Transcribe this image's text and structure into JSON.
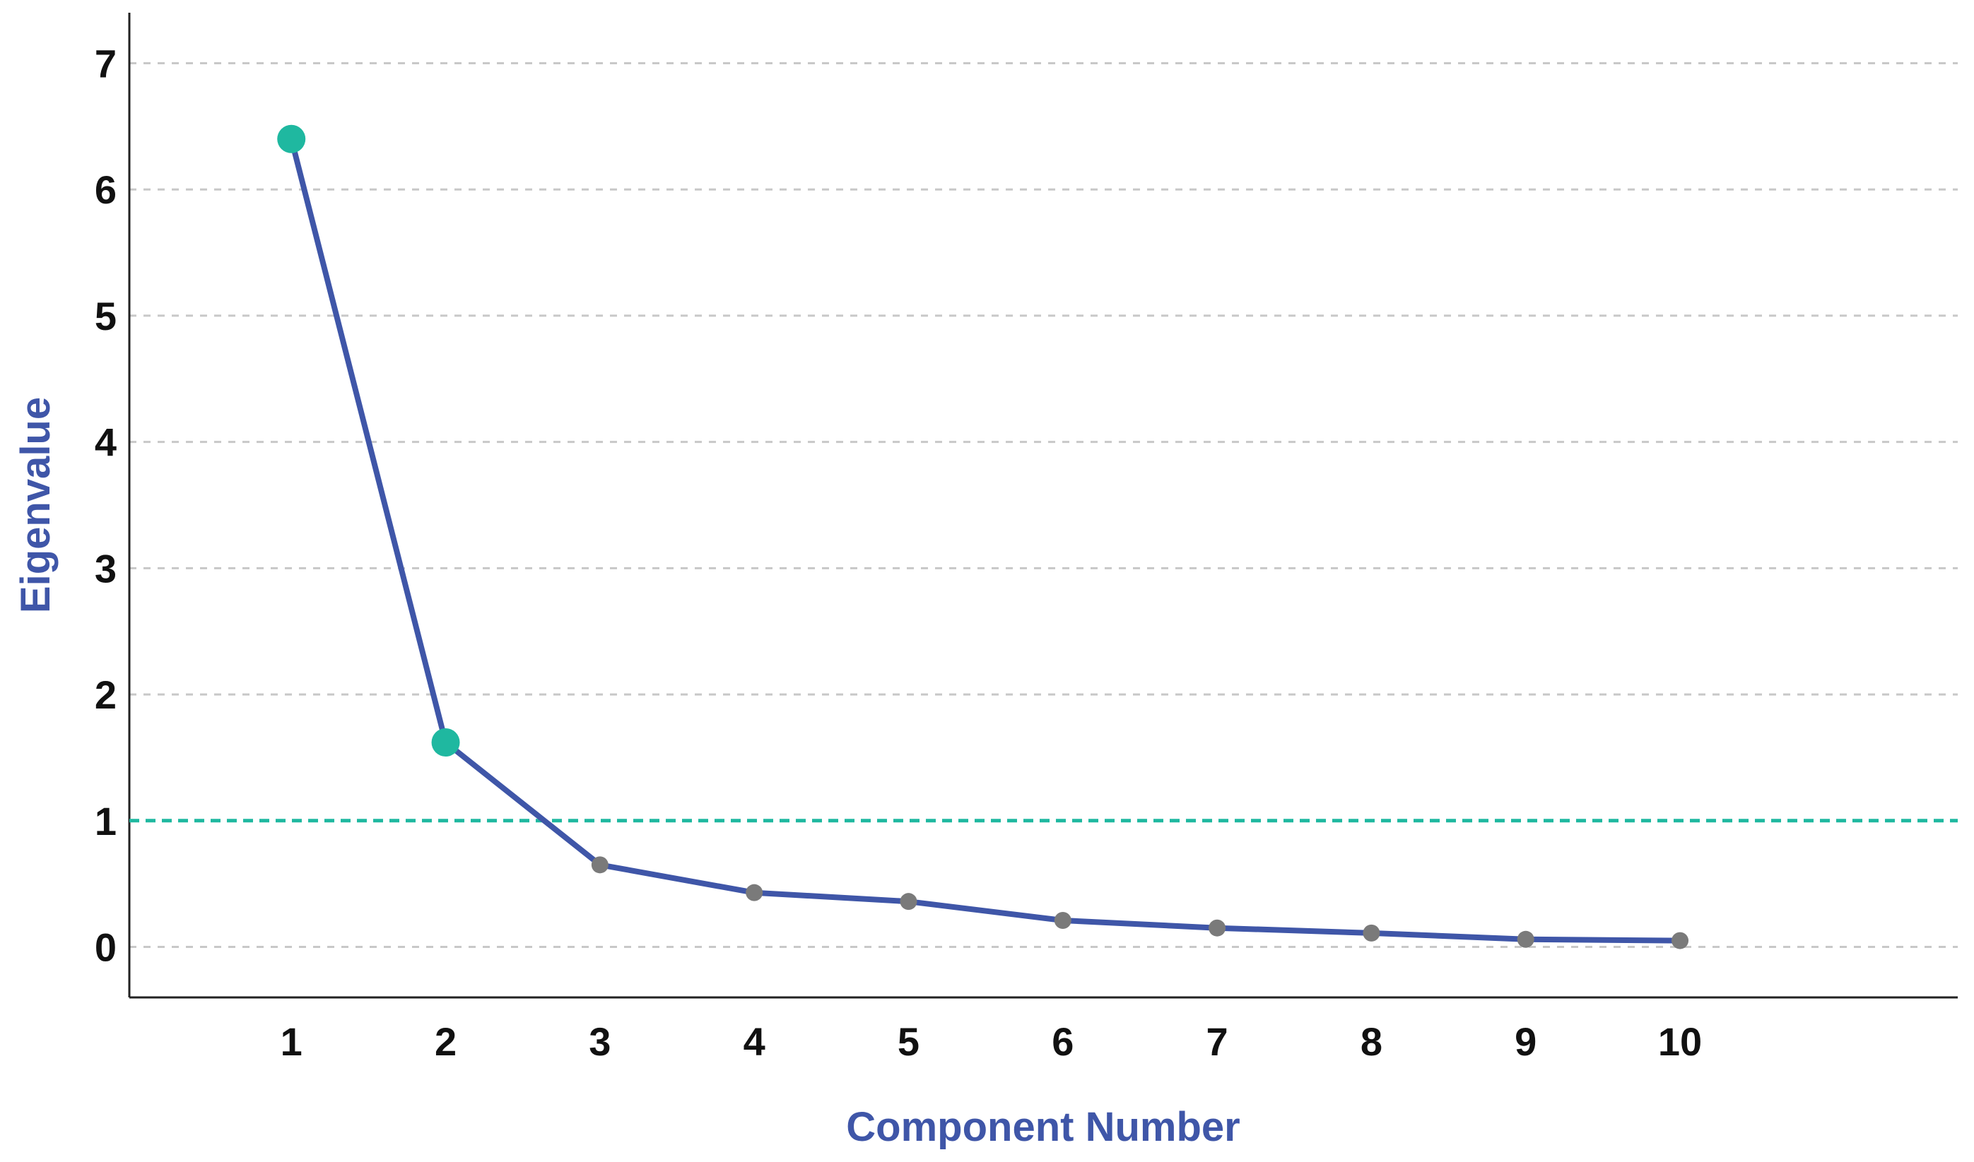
{
  "chart_data": {
    "type": "line",
    "title": "",
    "xlabel": "Component Number",
    "ylabel": "Eigenvalue",
    "x": [
      1,
      2,
      3,
      4,
      5,
      6,
      7,
      8,
      9,
      10
    ],
    "x_tick_labels": [
      "1",
      "2",
      "3",
      "4",
      "5",
      "6",
      "7",
      "8",
      "9",
      "10"
    ],
    "xlim": [
      -0.05,
      11.8
    ],
    "y_ticks": [
      0,
      1,
      2,
      3,
      4,
      5,
      6,
      7
    ],
    "y_tick_labels": [
      "0",
      "1",
      "2",
      "3",
      "4",
      "5",
      "6",
      "7"
    ],
    "ylim": [
      -0.4,
      7.4
    ],
    "series": [
      {
        "values": [
          6.4,
          1.62,
          0.65,
          0.43,
          0.36,
          0.21,
          0.15,
          0.11,
          0.06,
          0.05
        ]
      }
    ],
    "reference_line": {
      "y": 1,
      "style": "dashed"
    },
    "highlighted_points": [
      1,
      2
    ],
    "grid": "horizontal dashed",
    "legend": "none",
    "colors": {
      "line": "#3f56a8",
      "highlight_marker": "#1fb8a0",
      "marker": "#7a7a7a",
      "reference_line": "#1fb8a0",
      "axis_title": "#3f56a8",
      "grid": "#c8c8c8",
      "axis": "#222222"
    }
  }
}
